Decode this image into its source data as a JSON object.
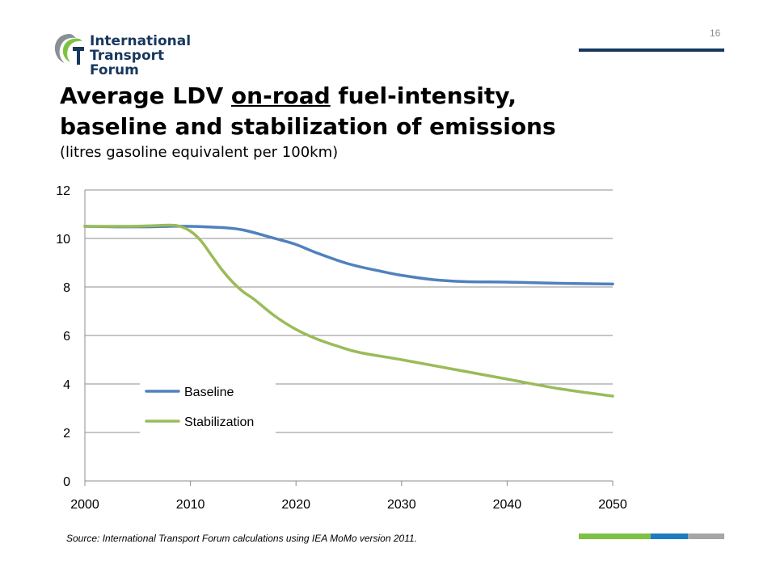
{
  "header": {
    "logo_line1": "International",
    "logo_line2": "Transport Forum",
    "slide_number": "16"
  },
  "title": {
    "part1": "Average LDV ",
    "underlined": "on-road",
    "part2": " fuel-intensity,",
    "line2": "baseline and stabilization of emissions",
    "subtitle": "(litres gasoline equivalent per 100km)"
  },
  "chart_data": {
    "type": "line",
    "title": "",
    "xlabel": "",
    "ylabel": "",
    "xlim": [
      2000,
      2050
    ],
    "ylim": [
      0,
      12
    ],
    "xticks": [
      2000,
      2010,
      2020,
      2030,
      2040,
      2050
    ],
    "yticks": [
      0,
      2,
      4,
      6,
      8,
      10,
      12
    ],
    "grid": true,
    "legend_position": "bottom-left",
    "series": [
      {
        "name": "Baseline",
        "color": "#4f81bd",
        "x": [
          2000,
          2003,
          2006,
          2008,
          2010,
          2013,
          2015,
          2018,
          2020,
          2022,
          2025,
          2028,
          2030,
          2033,
          2036,
          2040,
          2045,
          2050
        ],
        "values": [
          10.5,
          10.48,
          10.48,
          10.5,
          10.5,
          10.45,
          10.35,
          10.0,
          9.75,
          9.4,
          8.95,
          8.65,
          8.48,
          8.3,
          8.22,
          8.2,
          8.15,
          8.12
        ]
      },
      {
        "name": "Stabilization",
        "color": "#9bbb59",
        "x": [
          2000,
          2004,
          2006,
          2008,
          2009,
          2010,
          2011,
          2012,
          2013,
          2014,
          2015,
          2016,
          2018,
          2020,
          2022,
          2024,
          2026,
          2030,
          2035,
          2040,
          2045,
          2050
        ],
        "values": [
          10.5,
          10.5,
          10.52,
          10.55,
          10.5,
          10.3,
          9.9,
          9.3,
          8.7,
          8.2,
          7.8,
          7.5,
          6.8,
          6.25,
          5.85,
          5.55,
          5.3,
          5.0,
          4.6,
          4.2,
          3.8,
          3.5
        ]
      }
    ]
  },
  "footer": {
    "source": "Source: International Transport Forum calculations using IEA MoMo version 2011.",
    "bar_colors": [
      "#7dc243",
      "#1d7bc1",
      "#a6a6a6"
    ]
  }
}
